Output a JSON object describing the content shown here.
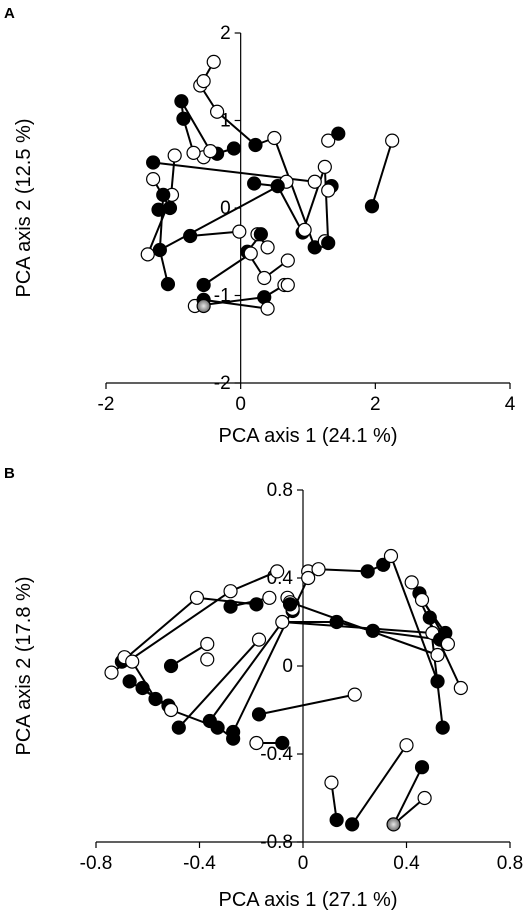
{
  "chart_data": [
    {
      "type": "scatter",
      "panel_label": "A",
      "xlabel": "PCA axis 1 (24.1 %)",
      "ylabel": "PCA axis 2  (12.5 %)",
      "xlim": [
        -2,
        4
      ],
      "ylim": [
        -2,
        2
      ],
      "xticks": [
        -2,
        0,
        2,
        4
      ],
      "yticks": [
        -2,
        -1,
        0,
        1,
        2
      ],
      "points": [
        {
          "x": -0.6,
          "y": 1.4,
          "fill": "white"
        },
        {
          "x": -0.35,
          "y": 1.1,
          "fill": "white"
        },
        {
          "x": 0.5,
          "y": 0.8,
          "fill": "white"
        },
        {
          "x": -1.3,
          "y": 0.52,
          "fill": "black"
        },
        {
          "x": -1.02,
          "y": 0.15,
          "fill": "white"
        },
        {
          "x": -0.55,
          "y": -0.88,
          "fill": "black"
        },
        {
          "x": -1.38,
          "y": -0.53,
          "fill": "white"
        },
        {
          "x": -1.08,
          "y": -0.87,
          "fill": "black"
        },
        {
          "x": -0.35,
          "y": 0.62,
          "fill": "black"
        },
        {
          "x": 0.92,
          "y": -0.28,
          "fill": "black"
        },
        {
          "x": 1.25,
          "y": 0.47,
          "fill": "white"
        },
        {
          "x": 1.3,
          "y": 0.77,
          "fill": "white"
        },
        {
          "x": 2.25,
          "y": 0.77,
          "fill": "white"
        },
        {
          "x": 1.95,
          "y": 0.02,
          "fill": "black"
        },
        {
          "x": -0.88,
          "y": 1.22,
          "fill": "black"
        },
        {
          "x": -0.85,
          "y": 1.02,
          "fill": "black"
        },
        {
          "x": -0.55,
          "y": 0.58,
          "fill": "white"
        },
        {
          "x": -1.22,
          "y": -0.02,
          "fill": "black"
        },
        {
          "x": -1.3,
          "y": 0.33,
          "fill": "white"
        },
        {
          "x": -0.7,
          "y": 0.63,
          "fill": "white"
        },
        {
          "x": -0.45,
          "y": 0.65,
          "fill": "white"
        },
        {
          "x": -0.1,
          "y": 0.68,
          "fill": "black"
        },
        {
          "x": 0.68,
          "y": 0.3,
          "fill": "white"
        },
        {
          "x": 0.55,
          "y": 0.25,
          "fill": "black"
        },
        {
          "x": 1.1,
          "y": 0.3,
          "fill": "white"
        },
        {
          "x": 1.35,
          "y": 0.25,
          "fill": "black"
        },
        {
          "x": 1.45,
          "y": 0.85,
          "fill": "black"
        },
        {
          "x": 0.2,
          "y": 0.28,
          "fill": "black"
        },
        {
          "x": 0.25,
          "y": -0.3,
          "fill": "white"
        },
        {
          "x": 0.4,
          "y": -0.45,
          "fill": "white"
        },
        {
          "x": 0.1,
          "y": -0.5,
          "fill": "black"
        },
        {
          "x": 0.35,
          "y": -0.8,
          "fill": "white"
        },
        {
          "x": -0.02,
          "y": -0.27,
          "fill": "white"
        },
        {
          "x": -0.75,
          "y": -0.32,
          "fill": "black"
        },
        {
          "x": -1.2,
          "y": -0.48,
          "fill": "black"
        },
        {
          "x": 0.95,
          "y": -0.25,
          "fill": "white"
        },
        {
          "x": 1.1,
          "y": -0.45,
          "fill": "black"
        },
        {
          "x": 1.25,
          "y": -0.38,
          "fill": "white"
        },
        {
          "x": 1.3,
          "y": -0.4,
          "fill": "black"
        },
        {
          "x": 0.15,
          "y": -0.52,
          "fill": "white"
        },
        {
          "x": 0.7,
          "y": -0.6,
          "fill": "white"
        },
        {
          "x": 0.65,
          "y": -0.88,
          "fill": "white"
        },
        {
          "x": 0.35,
          "y": -1.02,
          "fill": "black"
        },
        {
          "x": -0.68,
          "y": -1.12,
          "fill": "white"
        },
        {
          "x": -0.55,
          "y": -1.05,
          "fill": "black"
        },
        {
          "x": -0.55,
          "y": -1.12,
          "fill": "gray"
        },
        {
          "x": 0.4,
          "y": -1.15,
          "fill": "white"
        },
        {
          "x": 0.7,
          "y": -0.88,
          "fill": "white"
        },
        {
          "x": -1.15,
          "y": 0.15,
          "fill": "black"
        },
        {
          "x": -0.98,
          "y": 0.6,
          "fill": "white"
        },
        {
          "x": -1.05,
          "y": 0.0,
          "fill": "black"
        },
        {
          "x": 1.3,
          "y": 0.2,
          "fill": "white"
        },
        {
          "x": -0.4,
          "y": 1.67,
          "fill": "white"
        },
        {
          "x": -0.55,
          "y": 1.45,
          "fill": "white"
        },
        {
          "x": 0.22,
          "y": 0.72,
          "fill": "black"
        },
        {
          "x": 0.3,
          "y": -0.3,
          "fill": "black"
        }
      ],
      "segments": [
        [
          -1.3,
          0.52,
          1.1,
          0.3
        ],
        [
          -1.3,
          0.33,
          -1.05,
          0.0
        ],
        [
          -1.38,
          -0.53,
          -1.02,
          0.15
        ],
        [
          -1.2,
          -0.48,
          -1.08,
          -0.87
        ],
        [
          -0.75,
          -0.32,
          -0.02,
          -0.27
        ],
        [
          -0.55,
          -0.88,
          0.15,
          -0.52
        ],
        [
          -0.68,
          -1.12,
          0.35,
          -1.02
        ],
        [
          -0.55,
          -1.05,
          0.4,
          -1.15
        ],
        [
          -0.55,
          0.58,
          -0.1,
          0.68
        ],
        [
          -0.6,
          1.4,
          -0.35,
          1.1
        ],
        [
          -0.6,
          1.4,
          -0.4,
          1.67
        ],
        [
          -0.88,
          1.22,
          -0.85,
          1.02
        ],
        [
          -0.85,
          1.02,
          -0.7,
          0.63
        ],
        [
          -0.88,
          1.22,
          -0.45,
          0.65
        ],
        [
          -0.35,
          1.1,
          0.22,
          0.72
        ],
        [
          0.5,
          0.8,
          0.22,
          0.72
        ],
        [
          0.5,
          0.8,
          1.1,
          -0.45
        ],
        [
          -1.2,
          -0.48,
          0.68,
          0.3
        ],
        [
          -1.15,
          0.15,
          -1.2,
          -0.48
        ],
        [
          1.25,
          0.47,
          1.3,
          -0.4
        ],
        [
          1.25,
          0.47,
          0.92,
          -0.28
        ],
        [
          2.25,
          0.77,
          1.95,
          0.02
        ],
        [
          0.2,
          0.28,
          0.55,
          0.25
        ],
        [
          0.25,
          -0.3,
          0.4,
          -0.45
        ],
        [
          0.1,
          -0.5,
          0.35,
          -0.8
        ],
        [
          0.35,
          -0.8,
          0.7,
          -0.6
        ],
        [
          1.1,
          -0.45,
          1.25,
          -0.38
        ],
        [
          0.92,
          -0.28,
          0.55,
          0.25
        ],
        [
          -0.98,
          0.6,
          -1.05,
          0.0
        ],
        [
          0.3,
          -0.3,
          0.1,
          -0.5
        ],
        [
          0.65,
          -0.88,
          0.35,
          -1.02
        ]
      ]
    },
    {
      "type": "scatter",
      "panel_label": "B",
      "xlabel": "PCA axis 1 (27.1 %)",
      "ylabel": "PCA axis 2 (17.8 %)",
      "xlim": [
        -0.8,
        0.8
      ],
      "ylim": [
        -0.8,
        0.8
      ],
      "xticks": [
        -0.8,
        -0.4,
        0,
        0.4,
        0.8
      ],
      "yticks": [
        -0.8,
        -0.4,
        0,
        0.4,
        0.8
      ],
      "points": [
        {
          "x": -0.74,
          "y": -0.03,
          "fill": "white"
        },
        {
          "x": -0.7,
          "y": 0.02,
          "fill": "black"
        },
        {
          "x": -0.69,
          "y": 0.04,
          "fill": "white"
        },
        {
          "x": -0.66,
          "y": 0.02,
          "fill": "white"
        },
        {
          "x": -0.67,
          "y": -0.07,
          "fill": "black"
        },
        {
          "x": -0.62,
          "y": -0.1,
          "fill": "black"
        },
        {
          "x": -0.57,
          "y": -0.15,
          "fill": "black"
        },
        {
          "x": -0.52,
          "y": -0.18,
          "fill": "black"
        },
        {
          "x": -0.51,
          "y": 0.0,
          "fill": "black"
        },
        {
          "x": -0.51,
          "y": -0.2,
          "fill": "white"
        },
        {
          "x": -0.48,
          "y": -0.28,
          "fill": "black"
        },
        {
          "x": -0.41,
          "y": 0.31,
          "fill": "white"
        },
        {
          "x": -0.37,
          "y": 0.1,
          "fill": "white"
        },
        {
          "x": -0.37,
          "y": 0.03,
          "fill": "white"
        },
        {
          "x": -0.36,
          "y": -0.25,
          "fill": "black"
        },
        {
          "x": -0.33,
          "y": -0.28,
          "fill": "black"
        },
        {
          "x": -0.28,
          "y": 0.27,
          "fill": "black"
        },
        {
          "x": -0.28,
          "y": 0.34,
          "fill": "white"
        },
        {
          "x": -0.27,
          "y": -0.3,
          "fill": "black"
        },
        {
          "x": -0.27,
          "y": -0.33,
          "fill": "black"
        },
        {
          "x": -0.18,
          "y": 0.28,
          "fill": "black"
        },
        {
          "x": -0.18,
          "y": -0.35,
          "fill": "white"
        },
        {
          "x": -0.17,
          "y": 0.12,
          "fill": "white"
        },
        {
          "x": -0.17,
          "y": -0.22,
          "fill": "black"
        },
        {
          "x": -0.13,
          "y": 0.31,
          "fill": "white"
        },
        {
          "x": -0.08,
          "y": -0.35,
          "fill": "black"
        },
        {
          "x": -0.08,
          "y": 0.2,
          "fill": "white"
        },
        {
          "x": -0.06,
          "y": 0.31,
          "fill": "white"
        },
        {
          "x": -0.04,
          "y": 0.28,
          "fill": "black"
        },
        {
          "x": -0.04,
          "y": 0.25,
          "fill": "black"
        },
        {
          "x": -0.04,
          "y": 0.26,
          "fill": "white"
        },
        {
          "x": -0.05,
          "y": 0.29,
          "fill": "white"
        },
        {
          "x": -0.05,
          "y": 0.28,
          "fill": "black"
        },
        {
          "x": -0.1,
          "y": 0.43,
          "fill": "white"
        },
        {
          "x": 0.02,
          "y": 0.43,
          "fill": "white"
        },
        {
          "x": 0.02,
          "y": 0.4,
          "fill": "white"
        },
        {
          "x": 0.06,
          "y": 0.44,
          "fill": "white"
        },
        {
          "x": 0.13,
          "y": 0.2,
          "fill": "black"
        },
        {
          "x": 0.13,
          "y": -0.7,
          "fill": "black"
        },
        {
          "x": 0.19,
          "y": -0.72,
          "fill": "black"
        },
        {
          "x": 0.11,
          "y": -0.53,
          "fill": "white"
        },
        {
          "x": 0.2,
          "y": -0.13,
          "fill": "white"
        },
        {
          "x": 0.25,
          "y": 0.43,
          "fill": "black"
        },
        {
          "x": 0.27,
          "y": 0.16,
          "fill": "black"
        },
        {
          "x": 0.31,
          "y": 0.46,
          "fill": "black"
        },
        {
          "x": 0.34,
          "y": 0.5,
          "fill": "white"
        },
        {
          "x": 0.35,
          "y": -0.72,
          "fill": "gray"
        },
        {
          "x": 0.4,
          "y": -0.36,
          "fill": "white"
        },
        {
          "x": 0.42,
          "y": 0.38,
          "fill": "white"
        },
        {
          "x": 0.45,
          "y": 0.33,
          "fill": "black"
        },
        {
          "x": 0.46,
          "y": -0.46,
          "fill": "black"
        },
        {
          "x": 0.46,
          "y": 0.3,
          "fill": "white"
        },
        {
          "x": 0.47,
          "y": -0.6,
          "fill": "white"
        },
        {
          "x": 0.49,
          "y": 0.22,
          "fill": "black"
        },
        {
          "x": 0.5,
          "y": 0.15,
          "fill": "white"
        },
        {
          "x": 0.52,
          "y": -0.07,
          "fill": "black"
        },
        {
          "x": 0.53,
          "y": 0.12,
          "fill": "black"
        },
        {
          "x": 0.55,
          "y": 0.15,
          "fill": "black"
        },
        {
          "x": 0.54,
          "y": -0.28,
          "fill": "black"
        },
        {
          "x": 0.52,
          "y": 0.05,
          "fill": "white"
        },
        {
          "x": 0.56,
          "y": 0.1,
          "fill": "white"
        },
        {
          "x": 0.61,
          "y": -0.1,
          "fill": "white"
        }
      ],
      "segments": [
        [
          -0.74,
          -0.03,
          -0.28,
          0.34
        ],
        [
          -0.7,
          0.02,
          -0.41,
          0.31
        ],
        [
          -0.66,
          0.02,
          -0.57,
          -0.15
        ],
        [
          -0.67,
          -0.07,
          -0.52,
          -0.18
        ],
        [
          -0.62,
          -0.1,
          -0.51,
          -0.2
        ],
        [
          -0.51,
          0.0,
          -0.37,
          0.1
        ],
        [
          -0.36,
          -0.25,
          -0.27,
          -0.33
        ],
        [
          -0.51,
          -0.2,
          -0.33,
          -0.28
        ],
        [
          -0.48,
          -0.28,
          -0.17,
          0.12
        ],
        [
          -0.36,
          -0.25,
          -0.08,
          0.2
        ],
        [
          -0.27,
          -0.3,
          -0.04,
          0.26
        ],
        [
          -0.41,
          0.31,
          -0.18,
          0.28
        ],
        [
          -0.28,
          0.34,
          -0.1,
          0.43
        ],
        [
          -0.28,
          0.27,
          -0.13,
          0.31
        ],
        [
          -0.17,
          -0.22,
          0.2,
          -0.13
        ],
        [
          -0.18,
          -0.35,
          -0.08,
          -0.35
        ],
        [
          -0.04,
          0.25,
          -0.06,
          0.31
        ],
        [
          -0.08,
          0.2,
          0.13,
          0.2
        ],
        [
          0.02,
          0.4,
          -0.04,
          0.25
        ],
        [
          0.02,
          0.43,
          0.06,
          0.44
        ],
        [
          0.06,
          0.44,
          0.25,
          0.43
        ],
        [
          0.13,
          0.2,
          0.27,
          0.16
        ],
        [
          0.27,
          0.16,
          0.53,
          0.12
        ],
        [
          0.11,
          -0.53,
          0.13,
          -0.7
        ],
        [
          0.4,
          -0.36,
          0.19,
          -0.72
        ],
        [
          0.46,
          -0.46,
          0.35,
          -0.72
        ],
        [
          0.47,
          -0.6,
          0.35,
          -0.72
        ],
        [
          0.31,
          0.46,
          0.34,
          0.5
        ],
        [
          0.34,
          0.5,
          0.52,
          -0.07
        ],
        [
          0.25,
          0.43,
          0.31,
          0.46
        ],
        [
          0.42,
          0.38,
          0.61,
          -0.1
        ],
        [
          0.45,
          0.33,
          0.56,
          0.1
        ],
        [
          0.49,
          0.22,
          0.54,
          -0.28
        ],
        [
          0.46,
          0.3,
          0.55,
          0.15
        ],
        [
          -0.08,
          0.2,
          0.5,
          0.15
        ],
        [
          -0.05,
          0.29,
          0.52,
          0.05
        ]
      ]
    }
  ]
}
